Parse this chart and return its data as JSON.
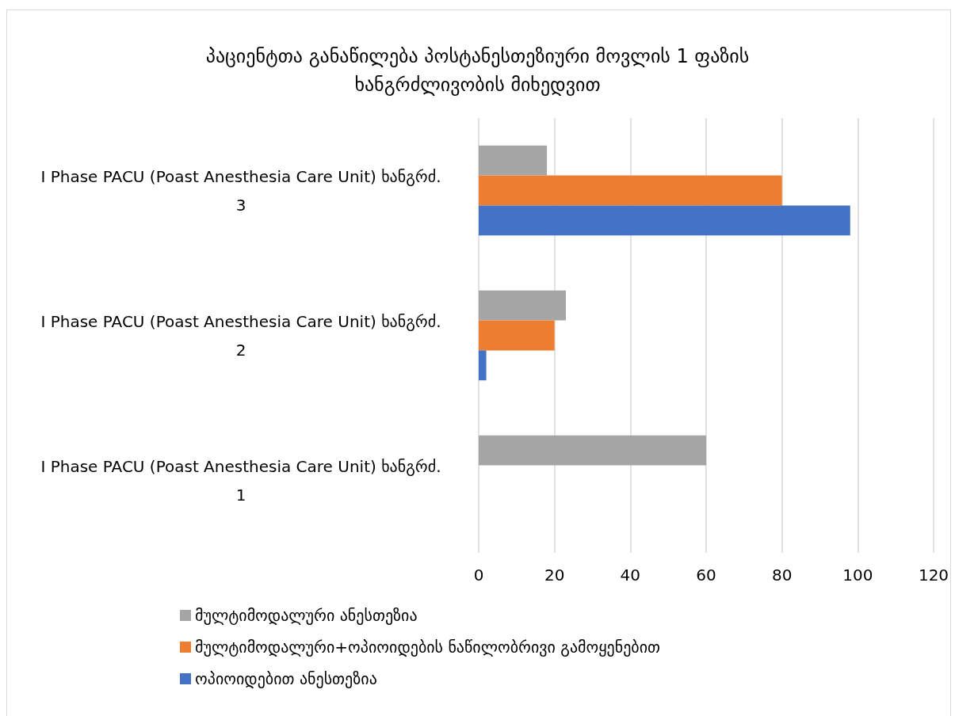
{
  "chart_data": {
    "type": "bar",
    "orientation": "horizontal",
    "title": "პაციენტთა განაწილება პოსტანესთეზიური მოვლის 1 ფაზის ხანგრძლივობის მიხედვით",
    "categories": [
      "I Phase PACU (Poast Anesthesia Care Unit) ხანგრძ. 3",
      "I Phase PACU (Poast Anesthesia Care Unit) ხანგრძ. 2",
      "I Phase PACU (Poast Anesthesia Care Unit) ხანგრძ. 1"
    ],
    "series": [
      {
        "name": "მულტიმოდალური ანესთეზია",
        "color": "#a5a5a5",
        "values": [
          18,
          23,
          60
        ]
      },
      {
        "name": "მულტიმოდალური+ოპიოიდების ნაწილობრივი გამოყენებით",
        "color": "#ed7d31",
        "values": [
          80,
          20,
          null
        ]
      },
      {
        "name": "ოპიოიდებით ანესთეზია",
        "color": "#4472c4",
        "values": [
          98,
          2,
          null
        ]
      }
    ],
    "xlim": [
      0,
      120
    ],
    "xticks": [
      0,
      20,
      40,
      60,
      80,
      100,
      120
    ],
    "grid": "x",
    "legend": "bottom"
  }
}
